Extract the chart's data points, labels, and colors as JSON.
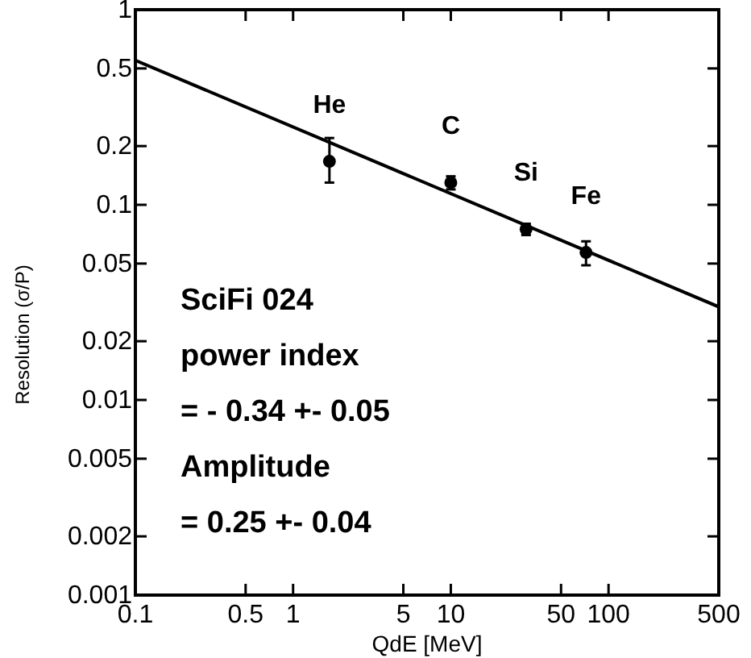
{
  "chart_data": {
    "type": "scatter",
    "xlabel": "QdE [MeV]",
    "ylabel": "Resolution (σ/P)",
    "log": "xy",
    "xlim": [
      0.1,
      500
    ],
    "xticks": [
      0.1,
      0.5,
      1,
      5,
      10,
      50,
      100,
      500
    ],
    "ylim": [
      0.001,
      1
    ],
    "yticks": [
      0.001,
      0.002,
      0.005,
      0.01,
      0.02,
      0.05,
      0.1,
      0.2,
      0.5,
      1
    ],
    "grid": false,
    "series": [
      {
        "color": "#000000",
        "marker": "circle",
        "x": [
          1.7,
          10,
          30,
          72
        ],
        "values": [
          0.167,
          0.13,
          0.075,
          0.057
        ],
        "errors": [
          [
            0.13,
            0.22
          ],
          [
            0.12,
            0.14
          ],
          [
            0.07,
            0.08
          ],
          [
            0.049,
            0.065
          ]
        ]
      },
      {
        "type": "line",
        "color": "#000000",
        "x": [
          0.1,
          500
        ],
        "values": [
          0.55,
          0.03
        ],
        "line_style": "solid",
        "marker": "none"
      }
    ],
    "annotations": [
      {
        "text": "He",
        "x": 1.7,
        "y": 0.167
      },
      {
        "text": "C",
        "x": 10,
        "y": 0.13
      },
      {
        "text": "Si",
        "x": 30,
        "y": 0.075
      },
      {
        "text": "Fe",
        "x": 72,
        "y": 0.057
      },
      "SciFi 024",
      "power index",
      "= - 0.34 +- 0.05",
      "Amplitude",
      "= 0.25 +- 0.04"
    ]
  }
}
